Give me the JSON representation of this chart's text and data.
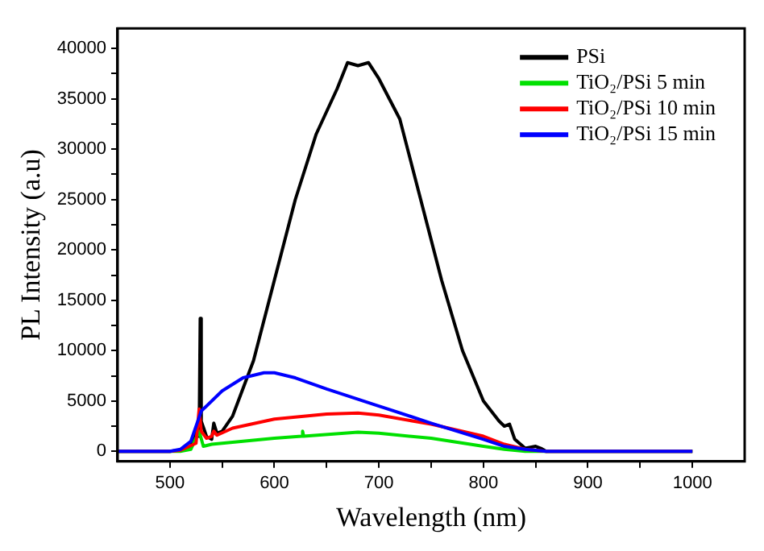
{
  "chart_data": {
    "type": "line",
    "xlabel": "Wavelength (nm)",
    "ylabel": "PL Intensity (a.u)",
    "xlim": [
      450,
      1050
    ],
    "ylim": [
      -1000,
      42000
    ],
    "xticks": [
      500,
      {
        "value": 550,
        "label": null
      },
      600,
      {
        "value": 650,
        "label": null
      },
      700,
      {
        "value": 750,
        "label": null
      },
      800,
      {
        "value": 850,
        "label": null
      },
      900,
      {
        "value": 950,
        "label": null
      },
      1000
    ],
    "yticks": [
      0,
      {
        "value": 2500,
        "label": null
      },
      5000,
      {
        "value": 7500,
        "label": null
      },
      10000,
      {
        "value": 12500,
        "label": null
      },
      15000,
      {
        "value": 17500,
        "label": null
      },
      20000,
      {
        "value": 22500,
        "label": null
      },
      25000,
      {
        "value": 27500,
        "label": null
      },
      30000,
      {
        "value": 32500,
        "label": null
      },
      35000,
      {
        "value": 37500,
        "label": null
      },
      40000
    ],
    "grid": false,
    "legend": "top right",
    "marker": "none",
    "line_style": "solid",
    "series": [
      {
        "name": "PSi",
        "color": "#000000",
        "x": [
          450,
          500,
          510,
          520,
          525,
          528,
          529,
          530,
          535,
          540,
          542,
          545,
          550,
          560,
          580,
          600,
          620,
          640,
          660,
          670,
          680,
          690,
          700,
          720,
          740,
          760,
          780,
          800,
          815,
          820,
          825,
          830,
          840,
          850,
          855,
          860,
          1000
        ],
        "values": [
          0,
          0,
          100,
          500,
          2000,
          1500,
          13200,
          3000,
          1500,
          1200,
          2800,
          1800,
          2000,
          3500,
          9000,
          17000,
          25000,
          31500,
          36000,
          38600,
          38300,
          38600,
          37000,
          33000,
          25000,
          17000,
          10000,
          5000,
          3000,
          2500,
          2700,
          1200,
          300,
          500,
          300,
          0,
          0
        ]
      },
      {
        "name": "TiO₂/PSi 5 min",
        "color": "#00e000",
        "x": [
          450,
          510,
          520,
          528,
          532,
          540,
          600,
          626,
          627,
          628,
          680,
          700,
          750,
          800,
          820,
          840,
          1000
        ],
        "values": [
          0,
          0,
          200,
          2000,
          500,
          700,
          1300,
          1500,
          2000,
          1500,
          1900,
          1800,
          1300,
          500,
          200,
          0,
          0
        ]
      },
      {
        "name": "TiO₂/PSi 10 min",
        "color": "#ff0000",
        "x": [
          450,
          500,
          510,
          525,
          528,
          530,
          535,
          540,
          542,
          545,
          560,
          600,
          650,
          680,
          700,
          750,
          800,
          820,
          840,
          860,
          1000
        ],
        "values": [
          0,
          0,
          100,
          800,
          4200,
          2000,
          1300,
          1500,
          2000,
          1600,
          2300,
          3200,
          3700,
          3800,
          3600,
          2700,
          1500,
          700,
          200,
          0,
          0
        ]
      },
      {
        "name": "TiO₂/PSi 15 min",
        "color": "#0000ff",
        "x": [
          450,
          500,
          510,
          520,
          530,
          550,
          570,
          590,
          600,
          620,
          650,
          700,
          750,
          800,
          820,
          840,
          860,
          1000
        ],
        "values": [
          0,
          0,
          200,
          1000,
          4000,
          6000,
          7300,
          7800,
          7800,
          7300,
          6200,
          4500,
          2800,
          1200,
          500,
          200,
          0,
          0
        ]
      }
    ]
  }
}
